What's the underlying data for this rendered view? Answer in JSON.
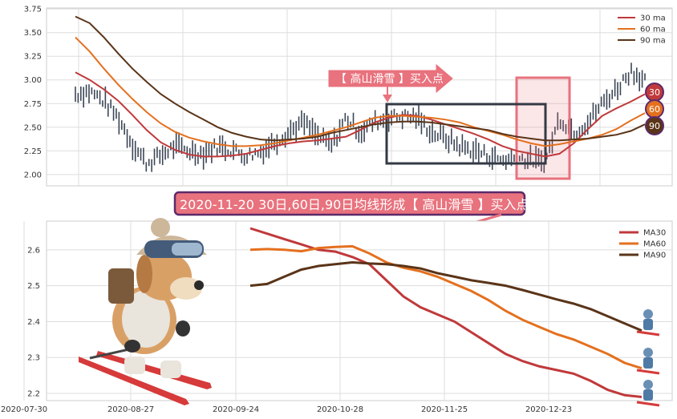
{
  "chart_data": [
    {
      "type": "candlestick+line",
      "ylim": [
        1.88,
        3.76
      ],
      "yticks": [
        2.0,
        2.25,
        2.5,
        2.75,
        3.0,
        3.25,
        3.5,
        3.75
      ],
      "ytick_labels": [
        "2.00",
        "2.25",
        "2.50",
        "2.75",
        "3.00",
        "3.25",
        "3.50",
        "3.75"
      ],
      "grid": true,
      "legend_position": "top-right",
      "candle_color": "#3b4656",
      "series": [
        {
          "name": "30 ma",
          "color": "#c0393b",
          "values": [
            3.08,
            3.0,
            2.9,
            2.78,
            2.63,
            2.47,
            2.34,
            2.26,
            2.21,
            2.19,
            2.19,
            2.2,
            2.22,
            2.26,
            2.3,
            2.33,
            2.35,
            2.36,
            2.38,
            2.4,
            2.47,
            2.55,
            2.6,
            2.63,
            2.62,
            2.58,
            2.53,
            2.48,
            2.43,
            2.37,
            2.3,
            2.25,
            2.22,
            2.19,
            2.22,
            2.33,
            2.48,
            2.62,
            2.7,
            2.77,
            2.85
          ]
        },
        {
          "name": "60 ma",
          "color": "#e4701e",
          "values": [
            3.45,
            3.3,
            3.12,
            2.95,
            2.8,
            2.66,
            2.54,
            2.45,
            2.39,
            2.35,
            2.32,
            2.3,
            2.3,
            2.31,
            2.33,
            2.36,
            2.39,
            2.42,
            2.46,
            2.5,
            2.55,
            2.6,
            2.62,
            2.62,
            2.61,
            2.6,
            2.58,
            2.55,
            2.5,
            2.46,
            2.42,
            2.37,
            2.33,
            2.3,
            2.32,
            2.35,
            2.38,
            2.42,
            2.48,
            2.57,
            2.65
          ]
        },
        {
          "name": "90 ma",
          "color": "#5a3418",
          "values": [
            3.67,
            3.6,
            3.45,
            3.28,
            3.12,
            2.98,
            2.85,
            2.75,
            2.66,
            2.58,
            2.5,
            2.44,
            2.4,
            2.37,
            2.36,
            2.37,
            2.38,
            2.4,
            2.44,
            2.47,
            2.5,
            2.53,
            2.55,
            2.56,
            2.56,
            2.55,
            2.53,
            2.51,
            2.49,
            2.47,
            2.43,
            2.4,
            2.38,
            2.36,
            2.36,
            2.37,
            2.38,
            2.4,
            2.42,
            2.46,
            2.53
          ]
        }
      ],
      "candles": [
        2.85,
        2.88,
        2.78,
        2.6,
        2.32,
        2.12,
        2.2,
        2.3,
        2.25,
        2.22,
        2.3,
        2.26,
        2.2,
        2.24,
        2.35,
        2.45,
        2.55,
        2.4,
        2.3,
        2.6,
        2.45,
        2.55,
        2.6,
        2.62,
        2.6,
        2.45,
        2.38,
        2.3,
        2.25,
        2.2,
        2.15,
        2.18,
        2.15,
        2.13,
        2.6,
        2.45,
        2.55,
        2.75,
        2.9,
        3.1,
        3.0
      ],
      "end_labels": [
        "30",
        "60",
        "90"
      ],
      "annotation": "【 高山滑雪 】买入点"
    },
    {
      "type": "line",
      "x_tick_labels": [
        "2020-07-30",
        "2020-08-27",
        "2020-09-24",
        "2020-10-28",
        "2020-11-25",
        "2020-12-23"
      ],
      "yticks": [
        2.2,
        2.3,
        2.4,
        2.5,
        2.6
      ],
      "ytick_labels": [
        "2.2",
        "2.3",
        "2.4",
        "2.5",
        "2.6"
      ],
      "ylim": [
        2.18,
        2.68
      ],
      "grid": true,
      "legend_position": "top-right",
      "series": [
        {
          "name": "MA30",
          "color": "#c0393b",
          "values": [
            2.66,
            2.645,
            2.63,
            2.615,
            2.6,
            2.595,
            2.58,
            2.56,
            2.515,
            2.47,
            2.44,
            2.42,
            2.4,
            2.37,
            2.34,
            2.31,
            2.29,
            2.275,
            2.265,
            2.255,
            2.235,
            2.21,
            2.195,
            2.19
          ]
        },
        {
          "name": "MA60",
          "color": "#e4701e",
          "values": [
            2.6,
            2.602,
            2.6,
            2.596,
            2.605,
            2.608,
            2.61,
            2.59,
            2.565,
            2.55,
            2.54,
            2.525,
            2.505,
            2.485,
            2.46,
            2.43,
            2.405,
            2.385,
            2.365,
            2.35,
            2.33,
            2.31,
            2.285,
            2.27
          ]
        },
        {
          "name": "MA90",
          "color": "#5a3418",
          "values": [
            2.5,
            2.505,
            2.525,
            2.545,
            2.555,
            2.56,
            2.565,
            2.562,
            2.56,
            2.555,
            2.548,
            2.535,
            2.525,
            2.515,
            2.508,
            2.5,
            2.488,
            2.475,
            2.462,
            2.45,
            2.435,
            2.415,
            2.395,
            2.375
          ]
        }
      ]
    }
  ],
  "banner": {
    "text": "2020-11-20 30日,60日,90日均线形成【 高山滑雪 】买入点",
    "fill": "#e8727d",
    "border": "#5c2a6b"
  },
  "highlight_color": "#e8727d",
  "box_color": "#333a44"
}
